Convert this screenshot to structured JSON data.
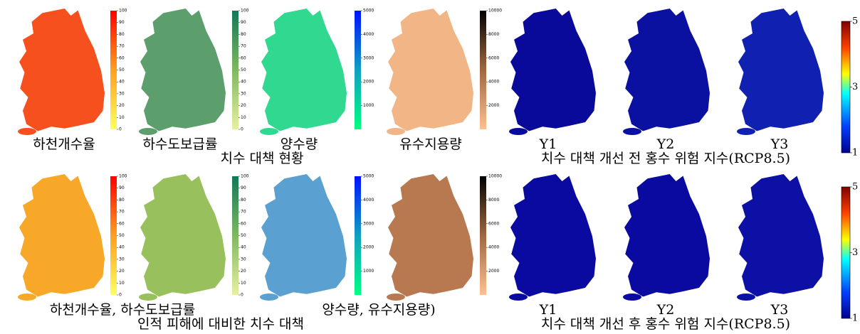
{
  "rows": [
    {
      "labels": [
        "하천개수율",
        "하수도보급률",
        "양수량",
        "유수지용량",
        "Y1",
        "Y2",
        "Y3"
      ],
      "caption": "치수 대책 현황",
      "risk_caption": "치수 대책 개선 전 홍수 위험 지수(RCP8.5)",
      "colorbars": [
        {
          "lim": [
            0,
            100
          ],
          "ticks": [
            0,
            10,
            20,
            30,
            40,
            50,
            60,
            70,
            80,
            90,
            100
          ]
        },
        {
          "lim": [
            0,
            100
          ],
          "ticks": [
            0,
            10,
            20,
            30,
            40,
            50,
            60,
            70,
            80,
            90,
            100
          ]
        },
        {
          "lim": [
            0,
            5000
          ],
          "ticks": [
            1000,
            2000,
            3000,
            4000,
            5000
          ]
        },
        {
          "lim": [
            0,
            10000
          ],
          "ticks": [
            2000,
            4000,
            6000,
            8000,
            10000
          ]
        }
      ],
      "risk_colorbar": {
        "lim": [
          1,
          5
        ],
        "ticks": [
          1,
          3,
          5
        ]
      }
    },
    {
      "labels": [
        "하천개수율, 하수도보급률",
        "양수량, 유수지용량)",
        "Y1",
        "Y2",
        "Y3"
      ],
      "caption": "인적 피해에 대비한 치수 대책",
      "risk_caption": "치수 대책 개선 후 홍수 위험 지수(RCP8.5)",
      "colorbars": [
        {
          "lim": [
            0,
            100
          ],
          "ticks": [
            0,
            10,
            20,
            30,
            40,
            50,
            60,
            70,
            80,
            90,
            100
          ]
        },
        {
          "lim": [
            0,
            100
          ],
          "ticks": [
            0,
            10,
            20,
            30,
            40,
            50,
            60,
            70,
            80,
            90,
            100
          ]
        },
        {
          "lim": [
            0,
            5000
          ],
          "ticks": [
            1000,
            2000,
            3000,
            4000,
            5000
          ]
        },
        {
          "lim": [
            0,
            10000
          ],
          "ticks": [
            2000,
            4000,
            6000,
            8000,
            10000
          ]
        }
      ],
      "risk_colorbar": {
        "lim": [
          1,
          5
        ],
        "ticks": [
          1,
          3,
          5
        ]
      }
    }
  ]
}
